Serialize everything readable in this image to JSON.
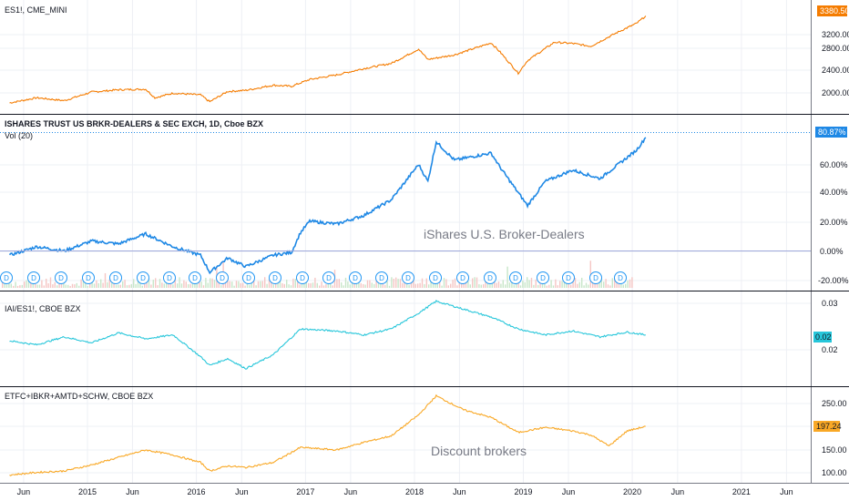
{
  "chart_data": [
    {
      "type": "line",
      "title": "ES1!, CME_MINI",
      "color": "#f57c00",
      "ylim": [
        1780,
        3500
      ],
      "yticks": [
        "3200.00",
        "2800.00",
        "2400.00",
        "2000.00"
      ],
      "last_value": "3380.50",
      "series": [
        {
          "x": [
            "2014-04",
            "2014-07",
            "2014-10",
            "2015-01",
            "2015-04",
            "2015-07",
            "2015-08",
            "2015-10",
            "2016-01",
            "2016-02",
            "2016-04",
            "2016-06",
            "2016-09",
            "2016-11",
            "2017-01",
            "2017-04",
            "2017-07",
            "2017-10",
            "2018-01",
            "2018-02",
            "2018-05",
            "2018-09",
            "2018-10",
            "2018-12",
            "2019-01",
            "2019-04",
            "2019-06",
            "2019-08",
            "2019-11",
            "2020-01",
            "2020-02"
          ],
          "values": [
            1860,
            1950,
            1900,
            2050,
            2090,
            2100,
            1950,
            2030,
            2000,
            1880,
            2060,
            2080,
            2170,
            2150,
            2270,
            2350,
            2460,
            2550,
            2800,
            2620,
            2700,
            2910,
            2750,
            2380,
            2600,
            2920,
            2900,
            2850,
            3100,
            3250,
            3380
          ]
        }
      ]
    },
    {
      "type": "line",
      "title": "ISHARES TRUST US BRKR-DEALERS & SEC EXCH, 1D, Cboe BZX",
      "subtitle": "Vol (20)",
      "annotation": "iShares U.S. Broker-Dealers",
      "color": "#1e88e5",
      "ylim": [
        -25,
        88
      ],
      "yticks": [
        "60.00%",
        "40.00%",
        "20.00%",
        "0.00%",
        "-20.00%"
      ],
      "last_value": "80.87%",
      "dividend_marker": "D",
      "series": [
        {
          "x": [
            "2014-04",
            "2014-07",
            "2014-10",
            "2015-01",
            "2015-04",
            "2015-07",
            "2015-10",
            "2016-01",
            "2016-02",
            "2016-04",
            "2016-06",
            "2016-09",
            "2016-11",
            "2016-12",
            "2017-01",
            "2017-04",
            "2017-07",
            "2017-10",
            "2018-01",
            "2018-02",
            "2018-03",
            "2018-05",
            "2018-09",
            "2018-10",
            "2018-12",
            "2019-01",
            "2019-03",
            "2019-06",
            "2019-09",
            "2019-11",
            "2020-01",
            "2020-02"
          ],
          "values": [
            -2,
            4,
            1,
            8,
            6,
            13,
            4,
            -2,
            -14,
            -4,
            -10,
            -2,
            0,
            14,
            22,
            20,
            26,
            37,
            62,
            50,
            78,
            65,
            70,
            60,
            42,
            33,
            50,
            58,
            52,
            62,
            72,
            81
          ]
        }
      ]
    },
    {
      "type": "line",
      "title": "IAI/ES1!, CBOE BZX",
      "color": "#26c6da",
      "ylim": [
        0.01,
        0.033
      ],
      "yticks": [
        "0.03",
        "0.02"
      ],
      "last_value": "0.02",
      "series": [
        {
          "x": [
            "2014-04",
            "2014-07",
            "2014-10",
            "2015-01",
            "2015-04",
            "2015-07",
            "2015-10",
            "2016-01",
            "2016-02",
            "2016-04",
            "2016-06",
            "2016-09",
            "2016-12",
            "2017-04",
            "2017-07",
            "2017-10",
            "2018-01",
            "2018-03",
            "2018-06",
            "2018-09",
            "2018-12",
            "2019-03",
            "2019-06",
            "2019-09",
            "2019-12",
            "2020-02"
          ],
          "values": [
            0.021,
            0.02,
            0.022,
            0.0205,
            0.023,
            0.0215,
            0.0225,
            0.017,
            0.0148,
            0.0165,
            0.014,
            0.0175,
            0.024,
            0.0235,
            0.0225,
            0.024,
            0.028,
            0.031,
            0.029,
            0.027,
            0.024,
            0.0225,
            0.0235,
            0.022,
            0.0232,
            0.0225
          ]
        }
      ]
    },
    {
      "type": "line",
      "title": "ETFC+IBKR+AMTD+SCHW, CBOE BZX",
      "annotation": "Discount brokers",
      "color": "#f9a825",
      "ylim": [
        88,
        270
      ],
      "yticks": [
        "250.00",
        "200.00",
        "150.00",
        "100.00"
      ],
      "last_value": "197.24",
      "series": [
        {
          "x": [
            "2014-04",
            "2014-07",
            "2014-10",
            "2015-01",
            "2015-04",
            "2015-07",
            "2015-10",
            "2016-01",
            "2016-02",
            "2016-04",
            "2016-06",
            "2016-09",
            "2016-12",
            "2017-04",
            "2017-07",
            "2017-10",
            "2018-01",
            "2018-03",
            "2018-06",
            "2018-09",
            "2018-12",
            "2019-03",
            "2019-06",
            "2019-08",
            "2019-10",
            "2019-12",
            "2020-02"
          ],
          "values": [
            100,
            105,
            108,
            120,
            135,
            150,
            140,
            125,
            108,
            118,
            115,
            125,
            155,
            150,
            165,
            178,
            220,
            258,
            230,
            215,
            185,
            195,
            188,
            180,
            158,
            188,
            197
          ]
        }
      ]
    }
  ],
  "x_axis_labels": [
    "Jun",
    "2015",
    "Jun",
    "2016",
    "Jun",
    "2017",
    "Jun",
    "2018",
    "Jun",
    "2019",
    "Jun",
    "2020",
    "Jun",
    "2021",
    "Jun"
  ]
}
